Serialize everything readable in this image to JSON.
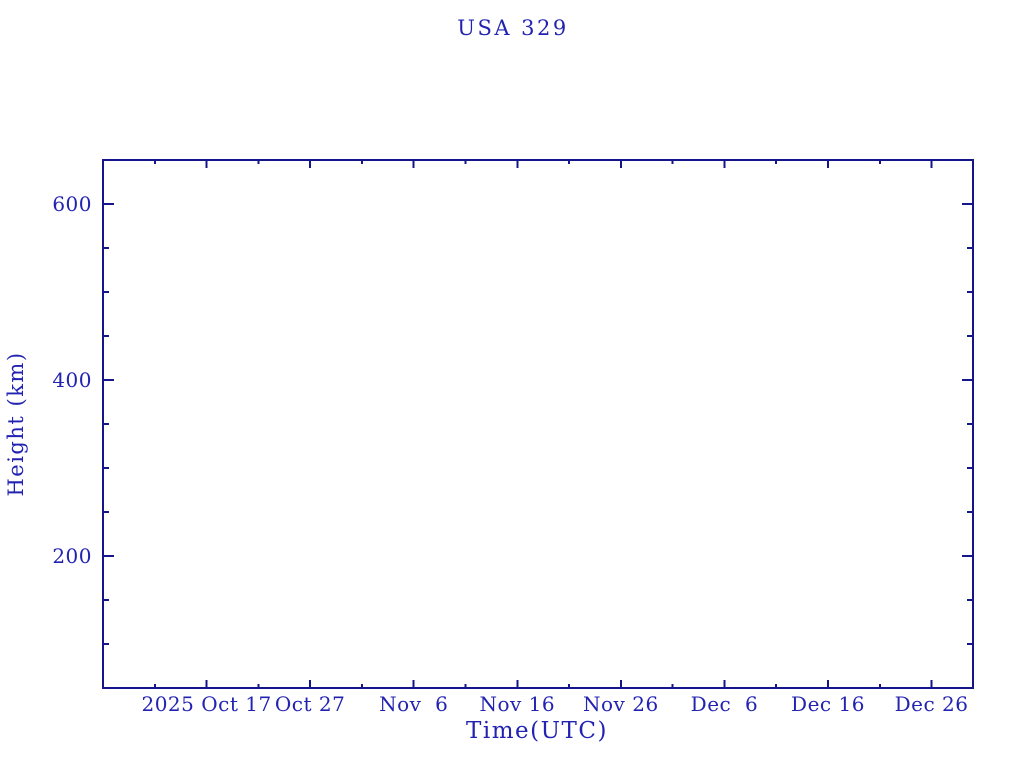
{
  "chart": {
    "title": "USA 329",
    "xlabel": "Time(UTC)",
    "ylabel": "Height (km)",
    "ink": {
      "line_color": "#16168c",
      "text_color": "#2323b2",
      "background": "#ffffff"
    }
  },
  "chart_data": {
    "type": "line",
    "title": "USA 329",
    "xlabel": "Time(UTC)",
    "ylabel": "Height (km)",
    "x_axis": {
      "kind": "time",
      "range_days_from_left_edge": [
        0,
        84
      ],
      "major_ticks": [
        {
          "day": 10,
          "label": "2025 Oct 17"
        },
        {
          "day": 20,
          "label": "Oct 27"
        },
        {
          "day": 30,
          "label": "Nov  6"
        },
        {
          "day": 40,
          "label": "Nov 16"
        },
        {
          "day": 50,
          "label": "Nov 26"
        },
        {
          "day": 60,
          "label": "Dec  6"
        },
        {
          "day": 70,
          "label": "Dec 16"
        },
        {
          "day": 80,
          "label": "Dec 26"
        }
      ],
      "minor_tick_days": [
        5,
        15,
        25,
        35,
        45,
        55,
        65,
        75
      ]
    },
    "y_axis": {
      "range": [
        50,
        650
      ],
      "major_ticks": [
        {
          "value": 200,
          "label": "200"
        },
        {
          "value": 400,
          "label": "400"
        },
        {
          "value": 600,
          "label": "600"
        }
      ],
      "minor_tick_values": [
        100,
        150,
        250,
        300,
        350,
        450,
        500,
        550
      ]
    },
    "series": [],
    "grid": false,
    "legend": null,
    "frame": "closed box with ticks mirrored on top and right edges"
  }
}
